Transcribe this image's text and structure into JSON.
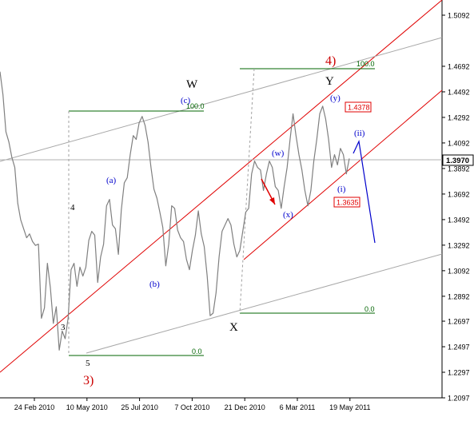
{
  "chart_data": {
    "type": "line",
    "title": "",
    "xlabel": "",
    "ylabel": "",
    "grid": false,
    "y_ticks": [
      "1.5092",
      "1.4692",
      "1.4492",
      "1.4292",
      "1.4092",
      "1.3892",
      "1.3692",
      "1.3492",
      "1.3292",
      "1.3092",
      "1.2892",
      "1.2697",
      "1.2497",
      "1.2297",
      "1.2097"
    ],
    "x_ticks": [
      "24 Feb 2010",
      "10 May 2010",
      "25 Jul 2010",
      "7 Oct 2010",
      "21 Dec 2010",
      "6 Mar 2011",
      "19 May 2011"
    ],
    "current_price": "1.3970",
    "ylim": [
      1.2097,
      1.5092
    ],
    "series": [
      {
        "values": [
          1.465,
          1.447,
          1.418,
          1.41,
          1.398,
          1.39,
          1.362,
          1.349,
          1.342,
          1.335,
          1.338,
          1.332,
          1.329,
          1.33,
          1.272,
          1.28,
          1.315,
          1.296,
          1.268,
          1.281,
          1.247,
          1.262,
          1.256,
          1.272,
          1.31,
          1.315,
          1.297,
          1.312,
          1.305,
          1.312,
          1.333,
          1.34,
          1.337,
          1.3,
          1.32,
          1.33,
          1.36,
          1.365,
          1.345,
          1.342,
          1.322,
          1.357,
          1.378,
          1.382,
          1.4,
          1.415,
          1.412,
          1.425,
          1.43,
          1.423,
          1.41,
          1.39,
          1.373,
          1.366,
          1.355,
          1.343,
          1.313,
          1.33,
          1.36,
          1.358,
          1.341,
          1.335,
          1.332,
          1.318,
          1.31,
          1.325,
          1.337,
          1.356,
          1.338,
          1.328,
          1.305,
          1.274,
          1.276,
          1.292,
          1.32,
          1.34,
          1.345,
          1.35,
          1.345,
          1.33,
          1.32,
          1.325,
          1.34,
          1.355,
          1.358,
          1.385,
          1.395,
          1.39,
          1.388,
          1.372,
          1.385,
          1.395,
          1.39,
          1.375,
          1.372,
          1.358,
          1.375,
          1.39,
          1.412,
          1.432,
          1.415,
          1.4,
          1.388,
          1.372,
          1.36,
          1.372,
          1.395,
          1.412,
          1.432,
          1.438,
          1.428,
          1.412,
          1.39,
          1.4,
          1.392,
          1.405,
          1.4,
          1.385,
          1.397
        ]
      }
    ],
    "annotations": {
      "wave_w": "W",
      "wave_y": "Y",
      "wave_x": "X",
      "wave_4": "4)",
      "wave_3": "3)",
      "wave_sub_4": "4",
      "wave_sub_3": "3",
      "wave_sub_5": "5",
      "wave_a": "(a)",
      "wave_b": "(b)",
      "wave_c": "(c)",
      "wave_w2": "(w)",
      "wave_x2": "(x)",
      "wave_y2": "(y)",
      "wave_i": "(i)",
      "wave_ii": "(ii)",
      "fib_top_left": "100.0",
      "fib_bottom_left": "0.0",
      "fib_top_right": "100.0",
      "fib_bottom_right": "0.0",
      "high_price": "1.4378",
      "low_price": "1.3635"
    },
    "colors": {
      "price": "#808080",
      "channel_red": "#e00000",
      "channel_grey": "#a8a8a8",
      "fib": "#006400",
      "projection": "#0000cc",
      "label_red": "#cc0000",
      "label_blue": "#0000cc",
      "label_black": "#000000"
    }
  }
}
